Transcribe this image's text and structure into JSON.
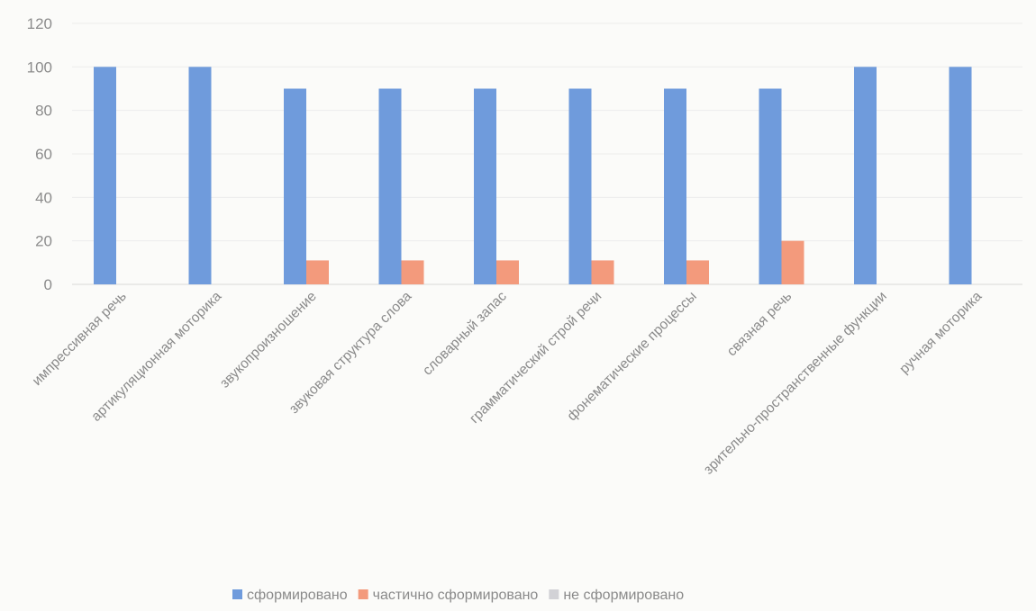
{
  "chart_data": {
    "type": "bar",
    "title": "",
    "xlabel": "",
    "ylabel": "",
    "ylim": [
      0,
      120
    ],
    "yticks": [
      0,
      20,
      40,
      60,
      80,
      100,
      120
    ],
    "grid": true,
    "legend_position": "bottom",
    "categories": [
      "импрессивная речь",
      "артикуляционная моторика",
      "звукопроизношение",
      "звуковая структура слова",
      "словарный запас",
      "грамматический строй речи",
      "фонематические процессы",
      "связная речь",
      "зрительно-пространственные функции",
      "ручная моторика"
    ],
    "series": [
      {
        "name": "сформировано",
        "color": "#6f9bdc",
        "values": [
          100,
          100,
          90,
          90,
          90,
          90,
          90,
          90,
          100,
          100
        ]
      },
      {
        "name": "частично сформировано",
        "color": "#f39a7c",
        "values": [
          0,
          0,
          11,
          11,
          11,
          11,
          11,
          20,
          0,
          0
        ]
      },
      {
        "name": "не сформировано",
        "color": "#d2d2d6",
        "values": [
          0,
          0,
          0,
          0,
          0,
          0,
          0,
          0,
          0,
          0
        ]
      }
    ]
  }
}
